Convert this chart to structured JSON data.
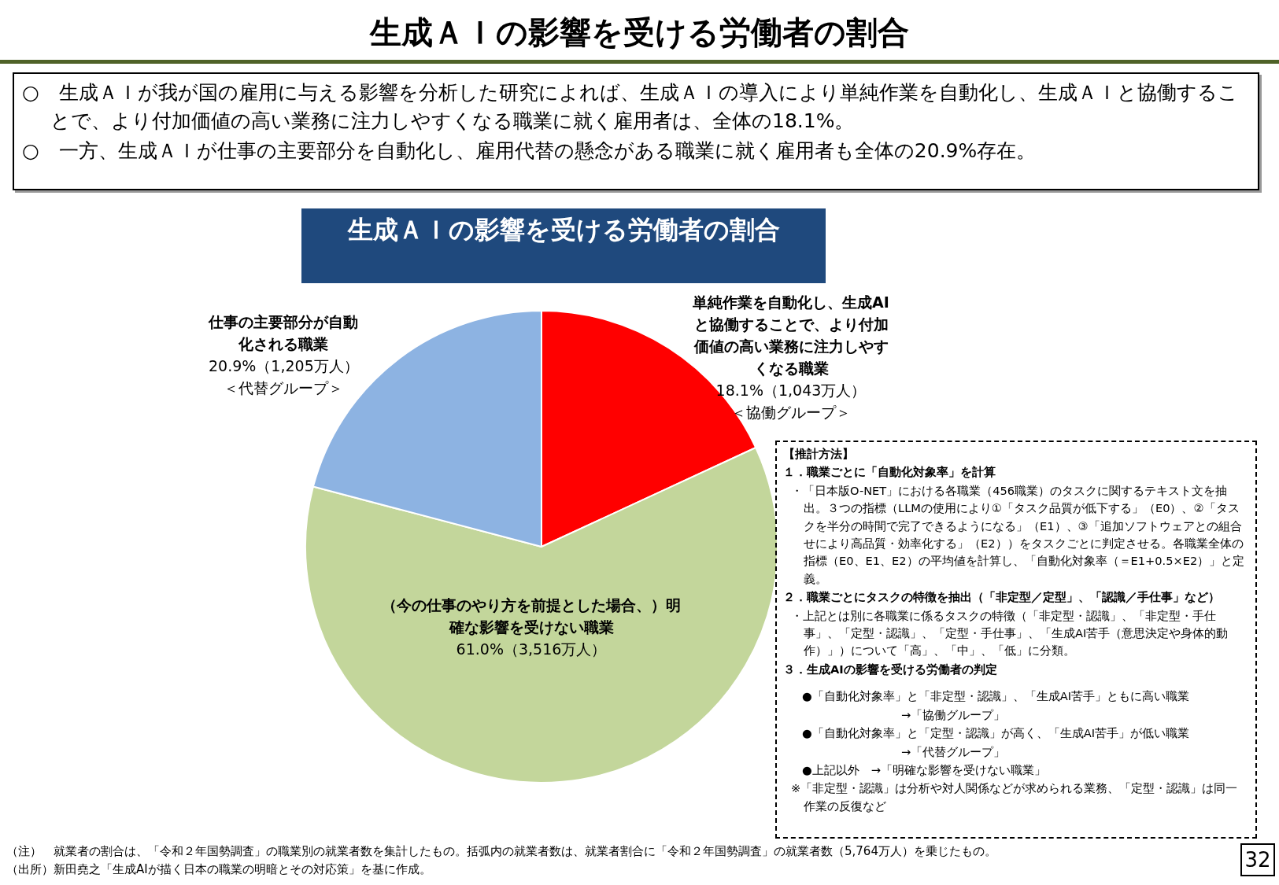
{
  "chart_data": {
    "type": "pie",
    "title": "生成ＡＩの影響を受ける労働者の割合",
    "subtitle": "生成ＡＩの影響を受ける労働者の割合",
    "categories": [
      "単純作業を自動化し、生成AIと協働することで、より付加価値の高い業務に注力しやすくなる職業",
      "（今の仕事のやり方を前提とした場合、）明確な影響を受けない職業",
      "仕事の主要部分が自動化される職業"
    ],
    "values": [
      18.1,
      61.0,
      20.9
    ],
    "value_labels": [
      "18.1%（1,043万人）",
      "61.0%（3,516万人）",
      "20.9%（1,205万人）"
    ],
    "colors": [
      "#ff0000",
      "#c3d69b",
      "#8db3e2"
    ],
    "legend": false,
    "annotations": [
      "○　生成ＡＩが我が国の雇用に与える影響を分析した研究によれば、生成ＡＩの導入により単純作業を自動化し、生成ＡＩと協働することで、より付加価値の高い業務に注力しやすくなる職業に就く雇用者は、全体の18.1%。",
      "○　一方、生成ＡＩが仕事の主要部分を自動化し、雇用代替の懸念がある職業に就く雇用者も全体の20.9%存在。",
      "【推計方法】",
      "１．職業ごとに「自動化対象率」を計算",
      "・「日本版O-NET」における各職業（456職業）のタスクに関するテキスト文を抽出。３つの指標（LLMの使用により①「タスク品質が低下する」（E0）、②「タスクを半分の時間で完了できるようになる」（E1）、③「追加ソフトウェアとの組合せにより高品質・効率化する」（E2））をタスクごとに判定させる。各職業全体の指標（E0、E1、E2）の平均値を計算し、「自動化対象率（＝E1+0.5×E2）」と定義。",
      "２．職業ごとにタスクの特徴を抽出（「非定型／定型」、「認識／手仕事」など）",
      "・上記とは別に各職業に係るタスクの特徴（「非定型・認識」、「非定型・手仕事」、「定型・認識」、「定型・手仕事」、「生成AI苦手（意思決定や身体的動作）」）について「高」、「中」、「低」に分類。",
      "３．生成AIの影響を受ける労働者の判定",
      "●「自動化対象率」と「非定型・認識」、「生成AI苦手」ともに高い職業",
      "→「協働グループ」",
      "●「自動化対象率」と「定型・認識」が高く、「生成AI苦手」が低い職業",
      "→「代替グループ」",
      "●上記以外　→「明確な影響を受けない職業」",
      "※「非定型・認識」は分析や対人関係などが求められる業務、「定型・認識」は同一作業の反復など",
      "（注）　就業者の割合は、「令和２年国勢調査」の職業別の就業者数を集計したもの。括弧内の就業者数は、就業者割合に「令和２年国勢調査」の就業者数（5,764万人）を乗じたもの。",
      "（出所）新田堯之「生成AIが描く日本の職業の明暗とその対応策」を基に作成。",
      "32",
      "＜協働グループ＞",
      "＜代替グループ＞"
    ]
  }
}
